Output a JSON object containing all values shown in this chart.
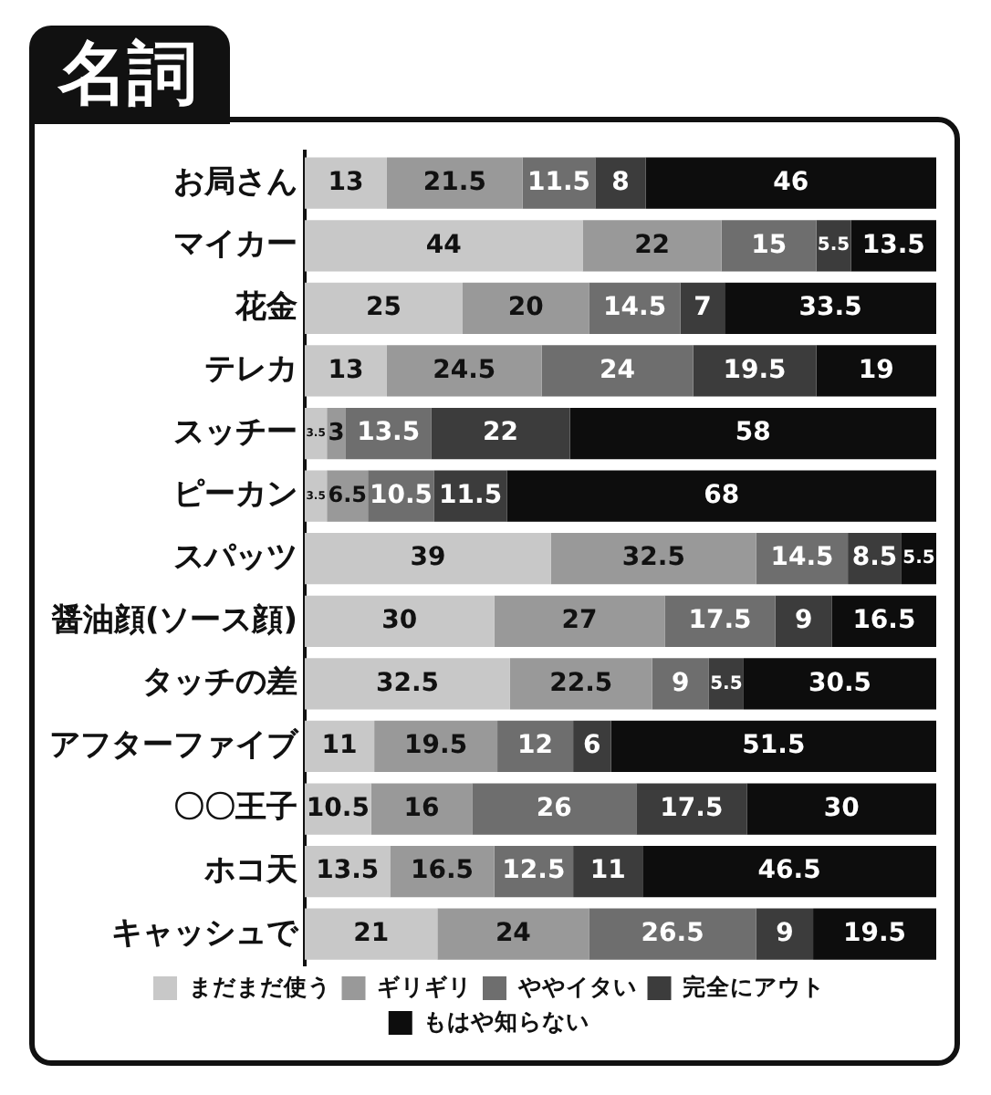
{
  "chart_data": {
    "type": "bar",
    "orientation": "horizontal",
    "stacked": true,
    "title": "名詞",
    "categories": [
      "お局さん",
      "マイカー",
      "花金",
      "テレカ",
      "スッチー",
      "ピーカン",
      "スパッツ",
      "醤油顔(ソース顔)",
      "タッチの差",
      "アフターファイブ",
      "〇〇王子",
      "ホコ天",
      "キャッシュで"
    ],
    "series": [
      {
        "name": "まだまだ使う",
        "color": "#c8c8c8",
        "values": [
          13,
          44,
          25,
          13,
          3.5,
          3.5,
          39,
          30,
          32.5,
          11,
          10.5,
          13.5,
          21
        ]
      },
      {
        "name": "ギリギリ",
        "color": "#999999",
        "values": [
          21.5,
          22,
          20,
          24.5,
          3,
          6.5,
          32.5,
          27,
          22.5,
          19.5,
          16,
          16.5,
          24
        ]
      },
      {
        "name": "ややイタい",
        "color": "#6e6e6e",
        "values": [
          11.5,
          15,
          14.5,
          24,
          13.5,
          10.5,
          14.5,
          17.5,
          9,
          12,
          26,
          12.5,
          26.5
        ]
      },
      {
        "name": "完全にアウト",
        "color": "#3c3c3c",
        "values": [
          8,
          5.5,
          7,
          19.5,
          22,
          11.5,
          8.5,
          9,
          5.5,
          6,
          17.5,
          11,
          9
        ]
      },
      {
        "name": "もはや知らない",
        "color": "#0d0d0d",
        "values": [
          46,
          13.5,
          33.5,
          19,
          58,
          68,
          5.5,
          16.5,
          30.5,
          51.5,
          30,
          46.5,
          19.5
        ]
      }
    ],
    "xlim": [
      0,
      100
    ],
    "tick_labels": "y",
    "grid": false,
    "legend": "bottom",
    "data_labels": true
  }
}
